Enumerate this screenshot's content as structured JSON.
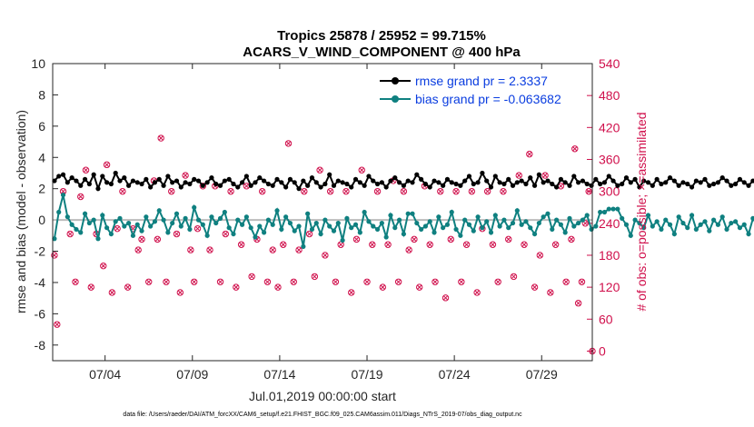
{
  "chart_data": {
    "type": "line",
    "title_line1": "Tropics 25878 / 25952 = 99.715%",
    "title_line2": "ACARS_V_WIND_COMPONENT @ 400 hPa",
    "xlabel": "Jul.01,2019 00:00:00 start",
    "ylabel_left": "rmse and bias (model - observation)",
    "ylabel_right": "# of obs: o=possible; ×=assimilated",
    "ylim_left": [
      -9,
      10
    ],
    "ylim_right": [
      -18,
      540
    ],
    "xlim_days": [
      1.0,
      31.9
    ],
    "x_ticks": [
      {
        "day": 4,
        "label": "07/04"
      },
      {
        "day": 9,
        "label": "07/09"
      },
      {
        "day": 14,
        "label": "07/14"
      },
      {
        "day": 19,
        "label": "07/19"
      },
      {
        "day": 24,
        "label": "07/24"
      },
      {
        "day": 29,
        "label": "07/29"
      }
    ],
    "y_ticks_left": [
      "10",
      "8",
      "6",
      "4",
      "2",
      "0",
      "-2",
      "-4",
      "-6",
      "-8"
    ],
    "y_ticks_right": [
      "540",
      "480",
      "420",
      "360",
      "300",
      "240",
      "180",
      "120",
      "60",
      "0"
    ],
    "x_step_days": 0.25,
    "colors": {
      "rmse": "#000000",
      "bias": "#0f8080",
      "obs": "#d0104c",
      "zero_line": "#bbbbbb"
    },
    "legend": [
      {
        "name": "rmse grand pr = 2.3337"
      },
      {
        "name": "bias grand pr = -0.063682"
      }
    ],
    "series": [
      {
        "name": "rmse",
        "values": [
          2.5,
          2.8,
          2.9,
          2.4,
          2.7,
          2.5,
          2.2,
          2.6,
          2.3,
          2.9,
          2.0,
          2.8,
          2.4,
          2.3,
          3.0,
          2.5,
          2.7,
          2.2,
          2.5,
          2.4,
          2.3,
          2.6,
          2.1,
          2.4,
          2.6,
          2.2,
          2.8,
          2.4,
          2.5,
          2.1,
          2.4,
          2.3,
          2.6,
          2.5,
          2.2,
          2.4,
          2.7,
          2.3,
          2.2,
          2.5,
          2.6,
          2.3,
          2.1,
          2.4,
          2.8,
          2.2,
          2.4,
          2.7,
          2.5,
          2.3,
          2.2,
          2.6,
          2.4,
          2.1,
          2.6,
          2.4,
          2.0,
          2.5,
          2.2,
          2.7,
          2.4,
          2.1,
          2.3,
          2.9,
          2.2,
          2.5,
          2.4,
          2.3,
          2.1,
          2.6,
          2.4,
          2.2,
          2.8,
          2.5,
          2.3,
          2.4,
          2.1,
          2.5,
          2.7,
          2.4,
          2.2,
          2.5,
          2.4,
          2.9,
          2.6,
          2.3,
          2.1,
          2.5,
          2.4,
          2.2,
          2.6,
          2.4,
          2.3,
          2.2,
          2.5,
          2.8,
          2.3,
          2.4,
          3.0,
          2.5,
          2.1,
          2.8,
          2.4,
          2.3,
          2.6,
          2.2,
          2.4,
          2.5,
          2.3,
          2.7,
          2.2,
          2.9,
          2.4,
          2.5,
          2.3,
          2.1,
          2.6,
          2.4,
          2.2,
          2.8,
          2.4,
          2.5,
          2.3,
          2.2,
          2.6,
          2.3,
          2.4,
          2.8,
          2.5,
          2.2,
          2.3,
          2.7,
          2.4,
          2.6,
          2.1,
          2.5,
          2.4,
          2.2,
          2.6,
          2.3,
          2.4,
          2.7,
          2.5,
          2.2,
          2.4,
          2.3,
          2.1,
          2.5,
          2.4,
          2.6,
          2.2,
          2.3,
          2.4,
          2.7,
          2.5,
          2.2,
          2.3,
          2.6,
          2.4,
          2.2,
          2.5,
          2.3,
          2.4,
          2.8,
          2.6,
          2.1,
          2.4,
          2.5,
          2.3,
          2.7,
          2.4,
          2.5,
          2.1,
          2.6,
          2.4,
          2.3,
          2.2,
          2.6,
          2.4,
          2.8,
          2.5,
          2.3,
          2.4,
          2.2,
          2.1,
          2.6,
          2.4,
          2.5,
          2.7,
          2.3,
          2.2,
          2.9,
          2.6,
          2.4,
          3.0,
          2.5,
          3.3,
          2.9,
          2.1,
          2.6,
          2.8,
          2.4,
          3.0,
          2.5,
          2.2,
          2.6,
          2.4,
          2.2,
          2.3,
          2.6,
          2.5,
          2.4,
          2.3,
          2.2,
          2.5,
          2.4,
          2.3,
          2.2,
          2.4,
          2.5,
          2.3,
          2.2,
          2.4,
          2.6,
          2.3,
          2.4,
          2.1,
          2.5,
          2.3,
          2.3,
          1.9,
          2.4,
          2.6,
          2.5,
          2.3,
          2.5
        ]
      },
      {
        "name": "bias",
        "values": [
          -1.2,
          0.5,
          1.6,
          0.2,
          -0.3,
          -0.6,
          -0.8,
          0.4,
          -0.2,
          0.0,
          -1.2,
          0.3,
          -0.5,
          -0.9,
          -0.1,
          0.1,
          -0.4,
          -0.2,
          -1.0,
          -0.3,
          -0.7,
          0.2,
          -0.4,
          -0.1,
          0.6,
          0.0,
          -0.8,
          -0.2,
          0.4,
          -0.4,
          0.1,
          -0.6,
          0.8,
          0.0,
          -0.3,
          -1.0,
          0.2,
          -0.2,
          0.1,
          0.5,
          -0.5,
          -0.9,
          0.0,
          -0.3,
          0.2,
          -0.5,
          -1.1,
          -0.4,
          -0.8,
          0.0,
          -0.3,
          0.6,
          -0.6,
          0.2,
          -0.2,
          -0.7,
          -0.4,
          -1.7,
          0.4,
          -0.6,
          -0.2,
          -0.9,
          0.0,
          -0.4,
          -0.7,
          -0.2,
          -1.3,
          0.1,
          -0.5,
          -0.3,
          -0.8,
          0.5,
          -0.1,
          -0.4,
          -0.6,
          -0.2,
          -1.1,
          0.3,
          -0.5,
          0.0,
          -0.9,
          0.4,
          0.4,
          -0.2,
          -0.6,
          -0.4,
          -0.1,
          -0.8,
          0.2,
          -0.5,
          -0.3,
          0.5,
          -0.6,
          -1.0,
          0.0,
          -0.3,
          -0.7,
          0.2,
          -0.5,
          -0.1,
          -0.8,
          0.3,
          -0.4,
          0.0,
          -0.5,
          -0.2,
          0.6,
          -0.3,
          -0.1,
          -0.5,
          -0.9,
          -0.2,
          0.2,
          0.4,
          -0.6,
          0.0,
          -0.3,
          -0.8,
          0.1,
          -0.4,
          -0.2,
          0.0,
          0.3,
          -0.6,
          -0.4,
          0.5,
          0.5,
          0.7,
          0.7,
          0.7,
          0.1,
          -0.3,
          -1.0,
          0.0,
          -0.2,
          -0.5,
          0.3,
          -0.4,
          -0.1,
          -0.6,
          0.0,
          -0.3,
          -0.9,
          0.2,
          -0.2,
          -0.5,
          0.3,
          -0.6,
          -0.3,
          -0.1,
          -0.7,
          0.0,
          -0.3,
          0.2,
          -0.6,
          -0.2,
          -0.1,
          -0.5,
          -0.3,
          -0.9,
          0.1,
          -0.4,
          -0.6,
          0.4,
          -0.3,
          -0.2,
          -0.6,
          -1.4,
          -0.6,
          0.2,
          -0.9,
          -0.1,
          0.3,
          -0.2,
          -0.7,
          0.4,
          -0.4,
          -1.2,
          -0.3,
          -0.1,
          -0.5,
          -0.6,
          -0.2,
          -0.4,
          0.2,
          -0.6,
          -1.0,
          -0.3,
          -0.5,
          -0.6,
          -0.8,
          -0.6,
          -0.5,
          0.0,
          -0.3,
          0.7,
          -0.2,
          0.4,
          1.5,
          1.3,
          1.8,
          0.4,
          -0.1,
          -0.6,
          0.7,
          0.4,
          0.3,
          -0.5,
          -1.1,
          -0.7,
          -0.5,
          -0.3,
          -0.6,
          -0.8,
          0.1,
          -0.5,
          -0.2,
          0.4,
          -0.4,
          -0.2,
          -0.5,
          -0.1,
          -0.7,
          0.0,
          0.5,
          0.5,
          0.7,
          0.7,
          0.7,
          0.5,
          0.7,
          0.7,
          0.5,
          0.1,
          -0.2,
          -0.5,
          -0.6
        ]
      },
      {
        "name": "obs_count",
        "values": [
          {
            "day": 1.1,
            "v": 180
          },
          {
            "day": 1.25,
            "v": 50
          },
          {
            "day": 1.6,
            "v": 300
          },
          {
            "day": 2.0,
            "v": 220
          },
          {
            "day": 2.3,
            "v": 130
          },
          {
            "day": 2.6,
            "v": 290
          },
          {
            "day": 2.9,
            "v": 340
          },
          {
            "day": 3.2,
            "v": 120
          },
          {
            "day": 3.5,
            "v": 220
          },
          {
            "day": 3.9,
            "v": 160
          },
          {
            "day": 4.1,
            "v": 350
          },
          {
            "day": 4.4,
            "v": 110
          },
          {
            "day": 4.7,
            "v": 230
          },
          {
            "day": 5.0,
            "v": 300
          },
          {
            "day": 5.3,
            "v": 120
          },
          {
            "day": 5.6,
            "v": 230
          },
          {
            "day": 5.9,
            "v": 190
          },
          {
            "day": 6.1,
            "v": 210
          },
          {
            "day": 6.5,
            "v": 130
          },
          {
            "day": 6.8,
            "v": 320
          },
          {
            "day": 7.0,
            "v": 210
          },
          {
            "day": 7.2,
            "v": 400
          },
          {
            "day": 7.5,
            "v": 130
          },
          {
            "day": 7.8,
            "v": 300
          },
          {
            "day": 8.1,
            "v": 220
          },
          {
            "day": 8.3,
            "v": 110
          },
          {
            "day": 8.6,
            "v": 330
          },
          {
            "day": 8.9,
            "v": 190
          },
          {
            "day": 9.1,
            "v": 130
          },
          {
            "day": 9.3,
            "v": 230
          },
          {
            "day": 9.6,
            "v": 310
          },
          {
            "day": 10.0,
            "v": 190
          },
          {
            "day": 10.3,
            "v": 310
          },
          {
            "day": 10.6,
            "v": 130
          },
          {
            "day": 10.9,
            "v": 220
          },
          {
            "day": 11.2,
            "v": 300
          },
          {
            "day": 11.5,
            "v": 120
          },
          {
            "day": 11.8,
            "v": 200
          },
          {
            "day": 12.1,
            "v": 310
          },
          {
            "day": 12.4,
            "v": 140
          },
          {
            "day": 12.7,
            "v": 210
          },
          {
            "day": 13.0,
            "v": 300
          },
          {
            "day": 13.3,
            "v": 130
          },
          {
            "day": 13.6,
            "v": 190
          },
          {
            "day": 13.9,
            "v": 120
          },
          {
            "day": 14.2,
            "v": 200
          },
          {
            "day": 14.5,
            "v": 390
          },
          {
            "day": 14.8,
            "v": 130
          },
          {
            "day": 15.1,
            "v": 190
          },
          {
            "day": 15.4,
            "v": 300
          },
          {
            "day": 15.7,
            "v": 220
          },
          {
            "day": 16.0,
            "v": 140
          },
          {
            "day": 16.3,
            "v": 340
          },
          {
            "day": 16.6,
            "v": 180
          },
          {
            "day": 16.9,
            "v": 300
          },
          {
            "day": 17.2,
            "v": 130
          },
          {
            "day": 17.5,
            "v": 200
          },
          {
            "day": 17.8,
            "v": 300
          },
          {
            "day": 18.1,
            "v": 110
          },
          {
            "day": 18.4,
            "v": 210
          },
          {
            "day": 18.7,
            "v": 340
          },
          {
            "day": 19.0,
            "v": 130
          },
          {
            "day": 19.3,
            "v": 200
          },
          {
            "day": 19.6,
            "v": 300
          },
          {
            "day": 19.9,
            "v": 120
          },
          {
            "day": 20.2,
            "v": 200
          },
          {
            "day": 20.5,
            "v": 320
          },
          {
            "day": 20.8,
            "v": 130
          },
          {
            "day": 21.1,
            "v": 300
          },
          {
            "day": 21.4,
            "v": 190
          },
          {
            "day": 21.7,
            "v": 210
          },
          {
            "day": 22.0,
            "v": 120
          },
          {
            "day": 22.3,
            "v": 310
          },
          {
            "day": 22.6,
            "v": 200
          },
          {
            "day": 22.9,
            "v": 130
          },
          {
            "day": 23.2,
            "v": 300
          },
          {
            "day": 23.5,
            "v": 100
          },
          {
            "day": 23.8,
            "v": 210
          },
          {
            "day": 24.1,
            "v": 300
          },
          {
            "day": 24.4,
            "v": 130
          },
          {
            "day": 24.7,
            "v": 200
          },
          {
            "day": 25.0,
            "v": 300
          },
          {
            "day": 25.3,
            "v": 110
          },
          {
            "day": 25.6,
            "v": 230
          },
          {
            "day": 25.9,
            "v": 300
          },
          {
            "day": 26.2,
            "v": 200
          },
          {
            "day": 26.5,
            "v": 130
          },
          {
            "day": 26.8,
            "v": 300
          },
          {
            "day": 27.1,
            "v": 210
          },
          {
            "day": 27.4,
            "v": 140
          },
          {
            "day": 27.7,
            "v": 330
          },
          {
            "day": 28.0,
            "v": 200
          },
          {
            "day": 28.3,
            "v": 370
          },
          {
            "day": 28.6,
            "v": 120
          },
          {
            "day": 28.9,
            "v": 180
          },
          {
            "day": 29.2,
            "v": 330
          },
          {
            "day": 29.5,
            "v": 110
          },
          {
            "day": 29.8,
            "v": 200
          },
          {
            "day": 30.1,
            "v": 310
          },
          {
            "day": 30.4,
            "v": 130
          },
          {
            "day": 30.7,
            "v": 210
          },
          {
            "day": 30.9,
            "v": 380
          },
          {
            "day": 31.1,
            "v": 90
          },
          {
            "day": 31.3,
            "v": 130
          },
          {
            "day": 31.5,
            "v": 240
          },
          {
            "day": 31.7,
            "v": 300
          },
          {
            "day": 31.9,
            "v": 0
          }
        ]
      }
    ]
  },
  "footer": "data file: /Users/raeder/DAI/ATM_forcXX/CAM6_setup/f.e21.FHIST_BGC.f09_025.CAM6assim.011/Diags_NTrS_2019-07/obs_diag_output.nc"
}
